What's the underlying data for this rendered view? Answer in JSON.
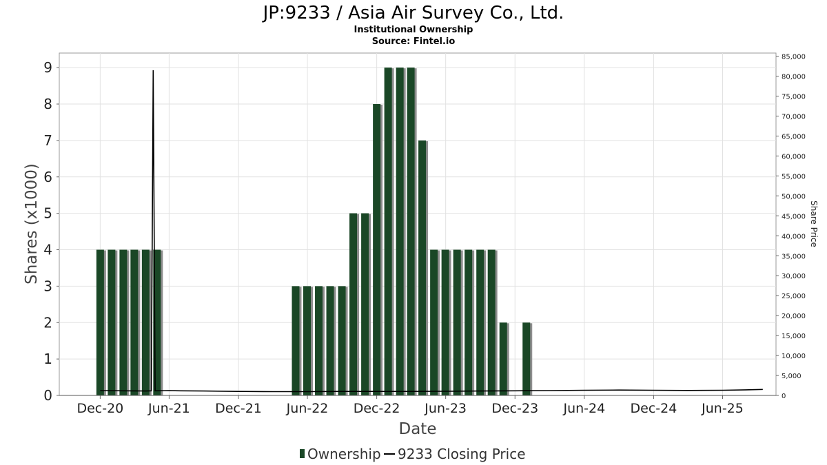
{
  "chart_data": {
    "type": "bar",
    "title": "JP:9233 / Asia Air Survey Co., Ltd.",
    "subtitle": "Institutional Ownership",
    "source": "Source: Fintel.io",
    "xlabel": "Date",
    "ylabel": "Shares (x1000)",
    "y2label": "Share Price",
    "ylim": [
      0,
      9.4
    ],
    "y2lim": [
      0,
      85800
    ],
    "yticks": [
      0,
      1,
      2,
      3,
      4,
      5,
      6,
      7,
      8,
      9
    ],
    "y2ticks": [
      "0",
      "5,000",
      "10,000",
      "15,000",
      "20,000",
      "25,000",
      "30,000",
      "35,000",
      "40,000",
      "45,000",
      "50,000",
      "55,000",
      "60,000",
      "65,000",
      "70,000",
      "75,000",
      "80,000",
      "85,000"
    ],
    "xticks": [
      {
        "label": "Dec-20",
        "date": "2020-12-01"
      },
      {
        "label": "Jun-21",
        "date": "2021-06-01"
      },
      {
        "label": "Dec-21",
        "date": "2021-12-01"
      },
      {
        "label": "Jun-22",
        "date": "2022-06-01"
      },
      {
        "label": "Dec-22",
        "date": "2022-12-01"
      },
      {
        "label": "Jun-23",
        "date": "2023-06-01"
      },
      {
        "label": "Dec-23",
        "date": "2023-12-01"
      },
      {
        "label": "Jun-24",
        "date": "2024-06-01"
      },
      {
        "label": "Dec-24",
        "date": "2024-12-01"
      },
      {
        "label": "Jun-25",
        "date": "2025-06-01"
      }
    ],
    "xlim": [
      "2020-08-15",
      "2025-10-20"
    ],
    "grid": true,
    "legend_position": "bottom",
    "series": [
      {
        "name": "Ownership",
        "kind": "bar",
        "color": "#1a4726",
        "points": [
          {
            "date": "2020-12-01",
            "value": 4
          },
          {
            "date": "2020-12-31",
            "value": 4
          },
          {
            "date": "2021-01-31",
            "value": 4
          },
          {
            "date": "2021-03-01",
            "value": 4
          },
          {
            "date": "2021-03-31",
            "value": 4
          },
          {
            "date": "2021-04-30",
            "value": 4
          },
          {
            "date": "2022-05-01",
            "value": 3
          },
          {
            "date": "2022-05-31",
            "value": 3
          },
          {
            "date": "2022-07-01",
            "value": 3
          },
          {
            "date": "2022-07-31",
            "value": 3
          },
          {
            "date": "2022-08-31",
            "value": 3
          },
          {
            "date": "2022-09-30",
            "value": 5
          },
          {
            "date": "2022-10-31",
            "value": 5
          },
          {
            "date": "2022-12-01",
            "value": 8
          },
          {
            "date": "2022-12-31",
            "value": 9
          },
          {
            "date": "2023-01-31",
            "value": 9
          },
          {
            "date": "2023-03-01",
            "value": 9
          },
          {
            "date": "2023-03-31",
            "value": 7
          },
          {
            "date": "2023-05-01",
            "value": 4
          },
          {
            "date": "2023-05-31",
            "value": 4
          },
          {
            "date": "2023-07-01",
            "value": 4
          },
          {
            "date": "2023-07-31",
            "value": 4
          },
          {
            "date": "2023-08-31",
            "value": 4
          },
          {
            "date": "2023-09-30",
            "value": 4
          },
          {
            "date": "2023-10-31",
            "value": 2
          },
          {
            "date": "2023-12-31",
            "value": 2
          }
        ]
      },
      {
        "name": "9233 Closing Price",
        "kind": "line",
        "color": "#000000",
        "axis": "right",
        "points": [
          {
            "date": "2020-12-01",
            "value": 1200
          },
          {
            "date": "2021-02-01",
            "value": 1150
          },
          {
            "date": "2021-04-01",
            "value": 1100
          },
          {
            "date": "2021-04-15",
            "value": 1150
          },
          {
            "date": "2021-04-20",
            "value": 81500
          },
          {
            "date": "2021-04-25",
            "value": 1150
          },
          {
            "date": "2021-06-01",
            "value": 1200
          },
          {
            "date": "2021-07-01",
            "value": 1150
          },
          {
            "date": "2021-09-01",
            "value": 1100
          },
          {
            "date": "2021-12-01",
            "value": 1000
          },
          {
            "date": "2022-03-01",
            "value": 950
          },
          {
            "date": "2022-06-01",
            "value": 950
          },
          {
            "date": "2022-09-01",
            "value": 1000
          },
          {
            "date": "2022-12-01",
            "value": 1000
          },
          {
            "date": "2023-03-01",
            "value": 1000
          },
          {
            "date": "2023-06-01",
            "value": 1050
          },
          {
            "date": "2023-09-01",
            "value": 1100
          },
          {
            "date": "2023-12-01",
            "value": 1150
          },
          {
            "date": "2024-03-01",
            "value": 1200
          },
          {
            "date": "2024-06-01",
            "value": 1300
          },
          {
            "date": "2024-09-01",
            "value": 1350
          },
          {
            "date": "2024-12-01",
            "value": 1300
          },
          {
            "date": "2025-03-01",
            "value": 1250
          },
          {
            "date": "2025-06-01",
            "value": 1300
          },
          {
            "date": "2025-08-01",
            "value": 1400
          },
          {
            "date": "2025-09-15",
            "value": 1500
          }
        ]
      }
    ]
  }
}
